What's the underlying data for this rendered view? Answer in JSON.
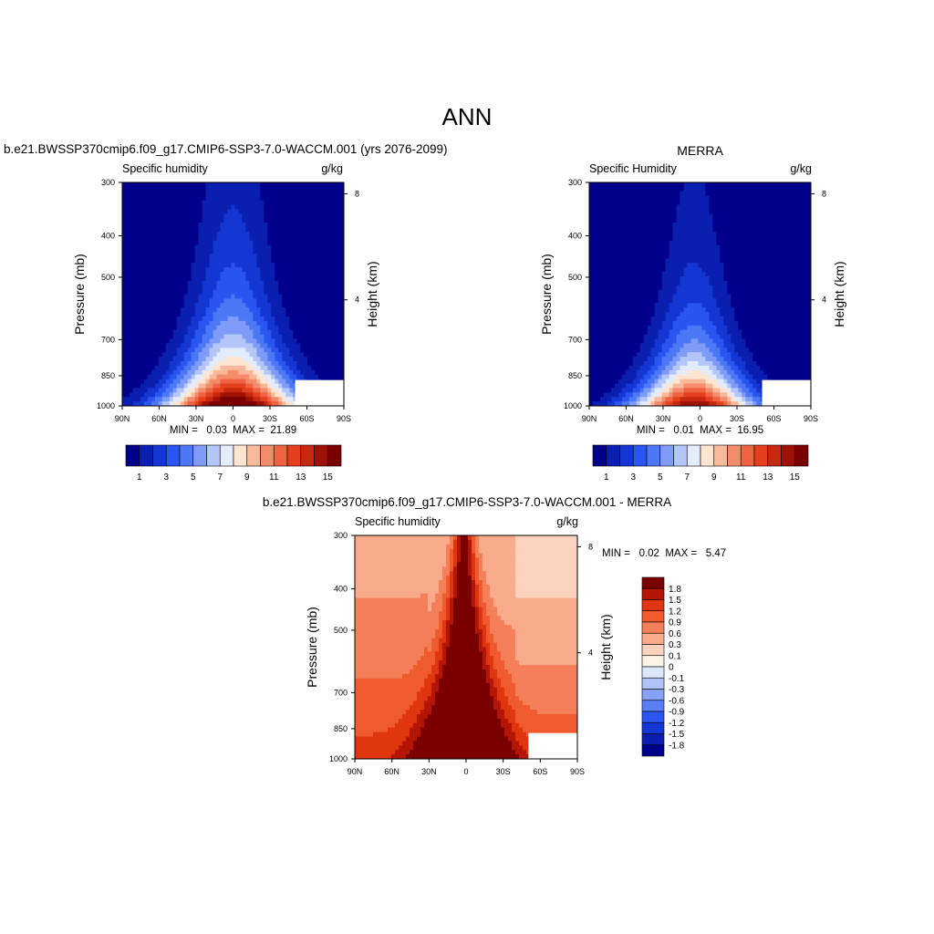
{
  "page_title": "ANN",
  "palette": {
    "abs": [
      "#00008b",
      "#0a1fb0",
      "#1436d2",
      "#2a55f0",
      "#4d78f5",
      "#7e9cf7",
      "#b4c6f8",
      "#e2ecfc",
      "#fde5d2",
      "#f9b89a",
      "#f48c6c",
      "#ef6342",
      "#e4401d",
      "#c62810",
      "#a01006",
      "#7a0000"
    ],
    "diff": [
      "#00008b",
      "#0a1fb0",
      "#1436d2",
      "#2a55f0",
      "#5a7ff5",
      "#86a1f6",
      "#b0c3f7",
      "#dbe7fb",
      "#fff2e6",
      "#fbd2bd",
      "#f8ab8a",
      "#f47f58",
      "#ef5a2e",
      "#e0360f",
      "#b41505",
      "#7a0000"
    ]
  },
  "panels": {
    "model": {
      "title": "b.e21.BWSSP370cmip6.f09_g17.CMIP6-SSP3-7.0-WACCM.001 (yrs 2076-2099)",
      "left_label": "Specific humidity",
      "units": "g/kg",
      "ylabel": "Pressure (mb)",
      "y2label": "Height (km)",
      "minmax_text": "MIN =   0.03  MAX =  21.89",
      "colorbar_ticks": [
        "1",
        "3",
        "5",
        "7",
        "9",
        "11",
        "13",
        "15"
      ]
    },
    "obs": {
      "title": "MERRA",
      "left_label": "Specific Humidity",
      "units": "g/kg",
      "ylabel": "Pressure (mb)",
      "y2label": "Height (km)",
      "minmax_text": "MIN =   0.01  MAX =  16.95",
      "colorbar_ticks": [
        "1",
        "3",
        "5",
        "7",
        "9",
        "11",
        "13",
        "15"
      ]
    },
    "diff": {
      "title": "b.e21.BWSSP370cmip6.f09_g17.CMIP6-SSP3-7.0-WACCM.001 - MERRA",
      "left_label": "Specific humidity",
      "units": "g/kg",
      "ylabel": "Pressure (mb)",
      "y2label": "Height (km)",
      "minmax_text": "MIN =   0.02  MAX =   5.47",
      "colorbar_labels": [
        "1.8",
        "1.5",
        "1.2",
        "0.9",
        "0.6",
        "0.3",
        "0.1",
        "0",
        "-0.1",
        "-0.3",
        "-0.6",
        "-0.9",
        "-1.2",
        "-1.5",
        "-1.8"
      ]
    }
  },
  "chart_data": [
    {
      "type": "heatmap",
      "title": "b.e21.BWSSP370cmip6.f09_g17.CMIP6-SSP3-7.0-WACCM.001 (yrs 2076-2099)",
      "variable": "Specific humidity",
      "units": "g/kg",
      "xlabel": "",
      "ylabel": "Pressure (mb)",
      "y2label": "Height (km)",
      "x_ticks": [
        "90N",
        "60N",
        "30N",
        "0",
        "30S",
        "60S",
        "90S"
      ],
      "x_range": [
        90,
        -90
      ],
      "y_ticks": [
        300,
        400,
        500,
        700,
        850,
        1000
      ],
      "y_range": [
        1000,
        300
      ],
      "y_scale": "log",
      "y2_ticks": [
        4,
        8
      ],
      "colorbar_ticks": [
        1,
        3,
        5,
        7,
        9,
        11,
        13,
        15
      ],
      "min": 0.03,
      "max": 21.89,
      "profile": {
        "lat_center": 0,
        "peak": 17.5,
        "surface_decay_lat": 40,
        "scale_height_mb": 300
      }
    },
    {
      "type": "heatmap",
      "title": "MERRA",
      "variable": "Specific Humidity",
      "units": "g/kg",
      "xlabel": "",
      "ylabel": "Pressure (mb)",
      "y2label": "Height (km)",
      "x_ticks": [
        "90N",
        "60N",
        "30N",
        "0",
        "30S",
        "60S",
        "90S"
      ],
      "x_range": [
        90,
        -90
      ],
      "y_ticks": [
        300,
        400,
        500,
        700,
        850,
        1000
      ],
      "y_range": [
        1000,
        300
      ],
      "y_scale": "log",
      "y2_ticks": [
        4,
        8
      ],
      "colorbar_ticks": [
        1,
        3,
        5,
        7,
        9,
        11,
        13,
        15
      ],
      "min": 0.01,
      "max": 16.95,
      "profile": {
        "lat_center": 5,
        "peak": 15.5,
        "surface_decay_lat": 36,
        "scale_height_mb": 260
      }
    },
    {
      "type": "heatmap",
      "title": "b.e21.BWSSP370cmip6.f09_g17.CMIP6-SSP3-7.0-WACCM.001 - MERRA",
      "variable": "Specific humidity",
      "units": "g/kg",
      "xlabel": "",
      "ylabel": "Pressure (mb)",
      "y2label": "Height (km)",
      "x_ticks": [
        "90N",
        "60N",
        "30N",
        "0",
        "30S",
        "60S",
        "90S"
      ],
      "x_range": [
        90,
        -90
      ],
      "y_ticks": [
        300,
        400,
        500,
        700,
        850,
        1000
      ],
      "y_range": [
        1000,
        300
      ],
      "y_scale": "log",
      "y2_ticks": [
        4,
        8
      ],
      "contour_levels": [
        -1.8,
        -1.5,
        -1.2,
        -0.9,
        -0.6,
        -0.3,
        -0.1,
        0,
        0.1,
        0.3,
        0.6,
        0.9,
        1.2,
        1.5,
        1.8
      ],
      "min": 0.02,
      "max": 5.47
    }
  ]
}
